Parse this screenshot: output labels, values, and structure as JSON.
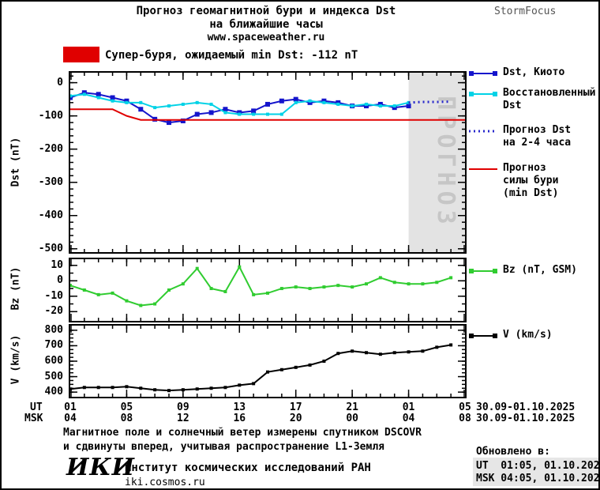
{
  "page": {
    "title_line1": "Прогноз геомагнитной бури и индекса Dst",
    "title_line2": "на ближайшие часы",
    "title_line3": "www.spaceweather.ru",
    "brand": "StormFocus"
  },
  "alert": {
    "text": "Супер-буря, ожидаемый min Dst: -112 nT",
    "color": "#e00000"
  },
  "legend": {
    "dst_kyoto": "Dst, Киото",
    "restored": [
      "Восстановленный",
      "Dst"
    ],
    "forecast_dst": [
      "Прогноз Dst",
      "на 2-4 часа"
    ],
    "storm_force": [
      "Прогноз",
      "силы бури",
      "(min Dst)"
    ],
    "bz": "Bz (nT, GSM)",
    "v": "V (km/s)"
  },
  "xaxis": {
    "ut_label": "UT",
    "msk_label": "MSK",
    "ut_ticks": [
      "01",
      "05",
      "09",
      "13",
      "17",
      "21",
      "01",
      "05"
    ],
    "msk_ticks": [
      "04",
      "08",
      "12",
      "16",
      "20",
      "00",
      "04",
      "08"
    ],
    "ut_date": "30.09-01.10.2025",
    "msk_date": "30.09-01.10.2025"
  },
  "footer": {
    "note_line1": "Магнитное поле и солнечный ветер измерены спутником DSCOVR",
    "note_line2": "и сдвинуты вперед, учитывая распространение L1-Земля",
    "logo": "ИКИ",
    "institute": "Институт космических исследований РАН",
    "site": "iki.cosmos.ru",
    "updated_label": "Обновлено в:",
    "updated_ut": "UT  01:05, 01.10.2025",
    "updated_msk": "MSK 04:05, 01.10.2025"
  },
  "chart_data": [
    {
      "name": "dst",
      "type": "line",
      "ylabel": "Dst (nT)",
      "xlim": [
        1,
        29
      ],
      "ylim": [
        -510,
        30
      ],
      "yticks": [
        0,
        -100,
        -200,
        -300,
        -400,
        -500
      ],
      "yminor": 20,
      "xticks": [
        1,
        5,
        9,
        13,
        17,
        21,
        25,
        29
      ],
      "forecast_band_x": [
        25,
        29
      ],
      "band_label": "ПРОГНОЗ",
      "series": [
        {
          "name": "Dst, Киото",
          "color": "#1414cc",
          "marker": "square",
          "msize": 6,
          "x": [
            1,
            2,
            3,
            4,
            5,
            6,
            7,
            8,
            9,
            10,
            11,
            12,
            13,
            14,
            15,
            16,
            17,
            18,
            19,
            20,
            21,
            22,
            23,
            24,
            25
          ],
          "values": [
            -45,
            -30,
            -35,
            -45,
            -55,
            -80,
            -110,
            -120,
            -115,
            -95,
            -90,
            -80,
            -90,
            -85,
            -65,
            -55,
            -50,
            -60,
            -55,
            -60,
            -70,
            -70,
            -65,
            -75,
            -70
          ]
        },
        {
          "name": "Восстановленный Dst",
          "color": "#00d2e6",
          "marker": "square",
          "msize": 4,
          "x": [
            1,
            2,
            3,
            4,
            5,
            6,
            7,
            8,
            9,
            10,
            11,
            12,
            13,
            14,
            15,
            16,
            17,
            18,
            19,
            20,
            21,
            22,
            23,
            24,
            25
          ],
          "values": [
            -40,
            -35,
            -45,
            -55,
            -60,
            -60,
            -75,
            -70,
            -65,
            -60,
            -65,
            -90,
            -95,
            -95,
            -95,
            -95,
            -60,
            -55,
            -60,
            -65,
            -70,
            -65,
            -70,
            -70,
            -60
          ]
        },
        {
          "name": "Прогноз Dst на 2-4 часа",
          "color": "#2828cc",
          "dash": true,
          "width": 3,
          "x": [
            25,
            26,
            27,
            28
          ],
          "values": [
            -60,
            -58,
            -58,
            -57
          ]
        },
        {
          "name": "Прогноз силы бури (min Dst)",
          "color": "#e00000",
          "width": 2,
          "x": [
            1,
            4,
            5,
            6,
            29
          ],
          "values": [
            -80,
            -80,
            -100,
            -112,
            -112
          ]
        }
      ]
    },
    {
      "name": "bz",
      "type": "line",
      "ylabel": "Bz (nT)",
      "xlim": [
        1,
        29
      ],
      "ylim": [
        -26,
        14
      ],
      "yticks": [
        10,
        0,
        -10,
        -20
      ],
      "yminor": 5,
      "xticks": [
        1,
        5,
        9,
        13,
        17,
        21,
        25,
        29
      ],
      "series": [
        {
          "name": "Bz (nT, GSM)",
          "color": "#30cc30",
          "marker": "square",
          "msize": 4,
          "x": [
            1,
            2,
            3,
            4,
            5,
            6,
            7,
            8,
            9,
            10,
            11,
            12,
            13,
            14,
            15,
            16,
            17,
            18,
            19,
            20,
            21,
            22,
            23,
            24,
            25,
            26,
            27,
            28
          ],
          "values": [
            -3,
            -6,
            -9,
            -8,
            -13,
            -16,
            -15,
            -6,
            -2,
            8,
            -5,
            -7,
            9,
            -9,
            -8,
            -5,
            -4,
            -5,
            -4,
            -3,
            -4,
            -2,
            2,
            -1,
            -2,
            -2,
            -1,
            2
          ]
        }
      ]
    },
    {
      "name": "v",
      "type": "line",
      "ylabel": "V (km/s)",
      "xlim": [
        1,
        29
      ],
      "ylim": [
        370,
        830
      ],
      "yticks": [
        800,
        700,
        600,
        500,
        400
      ],
      "yminor": 25,
      "xticks": [
        1,
        5,
        9,
        13,
        17,
        21,
        25,
        29
      ],
      "series": [
        {
          "name": "V (km/s)",
          "color": "#000000",
          "marker": "square",
          "msize": 4,
          "x": [
            1,
            2,
            3,
            4,
            5,
            6,
            7,
            8,
            9,
            10,
            11,
            12,
            13,
            14,
            15,
            16,
            17,
            18,
            19,
            20,
            21,
            22,
            23,
            24,
            25,
            26,
            27,
            28
          ],
          "values": [
            420,
            430,
            430,
            430,
            435,
            425,
            415,
            410,
            415,
            420,
            425,
            430,
            445,
            455,
            530,
            545,
            560,
            575,
            600,
            650,
            665,
            655,
            645,
            655,
            660,
            665,
            690,
            705
          ]
        }
      ]
    }
  ]
}
